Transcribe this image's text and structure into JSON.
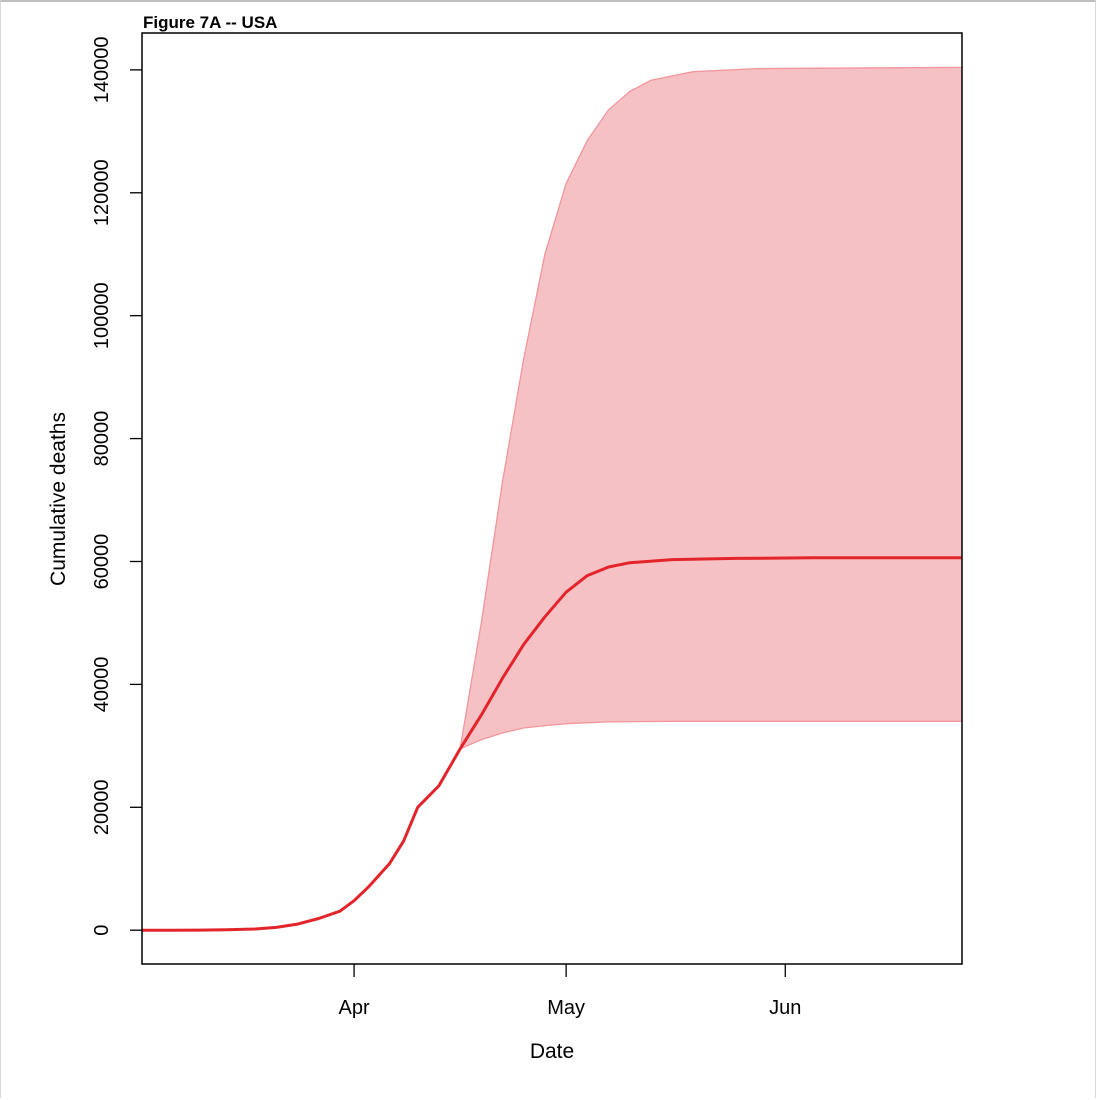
{
  "chart_data": {
    "type": "line",
    "title": "Figure 7A -- USA",
    "xlabel": "Date",
    "ylabel": "Cumulative deaths",
    "x_ticks": [
      {
        "date": "2020-04-01",
        "label": "Apr"
      },
      {
        "date": "2020-05-01",
        "label": "May"
      },
      {
        "date": "2020-06-01",
        "label": "Jun"
      }
    ],
    "y_ticks": [
      0,
      20000,
      40000,
      60000,
      80000,
      100000,
      120000,
      140000
    ],
    "xlim": [
      "2020-03-02",
      "2020-06-26"
    ],
    "ylim": [
      -5500,
      146000
    ],
    "grid": false,
    "series": [
      {
        "type": "line",
        "color": "#e3242b",
        "points": [
          [
            "2020-03-02",
            0
          ],
          [
            "2020-03-06",
            5
          ],
          [
            "2020-03-10",
            20
          ],
          [
            "2020-03-14",
            60
          ],
          [
            "2020-03-18",
            200
          ],
          [
            "2020-03-21",
            450
          ],
          [
            "2020-03-24",
            1000
          ],
          [
            "2020-03-27",
            1900
          ],
          [
            "2020-03-30",
            3100
          ],
          [
            "2020-04-01",
            4800
          ],
          [
            "2020-04-03",
            7000
          ],
          [
            "2020-04-06",
            10800
          ],
          [
            "2020-04-08",
            14500
          ],
          [
            "2020-04-10",
            20000
          ],
          [
            "2020-04-13",
            23500
          ],
          [
            "2020-04-16",
            29500
          ],
          [
            "2020-04-19",
            35000
          ],
          [
            "2020-04-22",
            41000
          ],
          [
            "2020-04-25",
            46500
          ],
          [
            "2020-04-28",
            51000
          ],
          [
            "2020-05-01",
            55000
          ],
          [
            "2020-05-04",
            57700
          ],
          [
            "2020-05-07",
            59100
          ],
          [
            "2020-05-10",
            59800
          ],
          [
            "2020-05-16",
            60300
          ],
          [
            "2020-05-25",
            60500
          ],
          [
            "2020-06-05",
            60600
          ],
          [
            "2020-06-26",
            60600
          ]
        ]
      },
      {
        "type": "band",
        "color": "#f4b6bb",
        "edge_color": "#f0969c",
        "upper": [
          [
            "2020-04-16",
            29500
          ],
          [
            "2020-04-19",
            50000
          ],
          [
            "2020-04-22",
            73000
          ],
          [
            "2020-04-25",
            93000
          ],
          [
            "2020-04-28",
            110000
          ],
          [
            "2020-05-01",
            121500
          ],
          [
            "2020-05-04",
            128500
          ],
          [
            "2020-05-07",
            133500
          ],
          [
            "2020-05-10",
            136500
          ],
          [
            "2020-05-13",
            138300
          ],
          [
            "2020-05-19",
            139700
          ],
          [
            "2020-05-28",
            140200
          ],
          [
            "2020-06-26",
            140400
          ]
        ],
        "lower": [
          [
            "2020-04-16",
            29500
          ],
          [
            "2020-04-19",
            31000
          ],
          [
            "2020-04-22",
            32100
          ],
          [
            "2020-04-25",
            32900
          ],
          [
            "2020-04-28",
            33300
          ],
          [
            "2020-05-01",
            33600
          ],
          [
            "2020-05-07",
            33900
          ],
          [
            "2020-05-16",
            34000
          ],
          [
            "2020-06-26",
            34000
          ]
        ]
      }
    ]
  }
}
